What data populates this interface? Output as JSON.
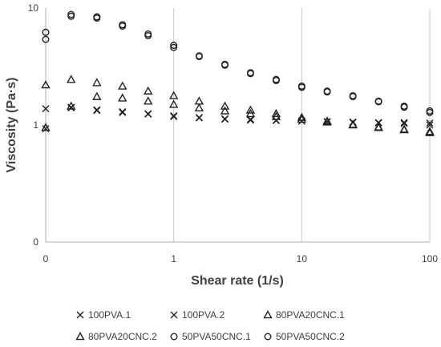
{
  "chart_data": {
    "type": "scatter",
    "xlabel": "Shear rate (1/s)",
    "ylabel": "Viscosity  (Pa·s)",
    "xscale": "log",
    "yscale": "log",
    "xlim": [
      0.1,
      100
    ],
    "ylim": [
      0.1,
      10
    ],
    "xticks": [
      {
        "v": 0.1,
        "label": "0"
      },
      {
        "v": 1,
        "label": "1"
      },
      {
        "v": 10,
        "label": "10"
      },
      {
        "v": 100,
        "label": "100"
      }
    ],
    "yticks": [
      {
        "v": 0.1,
        "label": "0"
      },
      {
        "v": 1,
        "label": "1"
      },
      {
        "v": 10,
        "label": "10"
      }
    ],
    "grid": "vertical",
    "legend_position": "bottom",
    "x": [
      0.1,
      0.158,
      0.251,
      0.398,
      0.631,
      1,
      1.58,
      2.51,
      3.98,
      6.31,
      10,
      15.8,
      25.1,
      39.8,
      63.1,
      100
    ],
    "series": [
      {
        "name": "100PVA.1",
        "marker": "x",
        "values": [
          1.38,
          1.4,
          1.35,
          1.3,
          1.25,
          1.2,
          1.16,
          1.13,
          1.12,
          1.1,
          1.08,
          1.07,
          1.06,
          1.05,
          1.05,
          1.04
        ]
      },
      {
        "name": "100PVA.2",
        "marker": "x",
        "values": [
          0.93,
          1.42,
          1.33,
          1.28,
          1.24,
          1.18,
          1.15,
          1.12,
          1.1,
          1.09,
          1.08,
          1.06,
          1.05,
          1.04,
          1.03,
          1.0
        ]
      },
      {
        "name": "80PVA20CNC.1",
        "marker": "triangle",
        "values": [
          2.2,
          2.45,
          2.3,
          2.15,
          1.95,
          1.78,
          1.6,
          1.45,
          1.34,
          1.25,
          1.16,
          1.08,
          1.01,
          0.96,
          0.92,
          0.88
        ]
      },
      {
        "name": "80PVA20CNC.2",
        "marker": "triangle",
        "values": [
          0.95,
          1.45,
          1.75,
          1.7,
          1.6,
          1.5,
          1.4,
          1.32,
          1.25,
          1.18,
          1.12,
          1.06,
          1.0,
          0.95,
          0.91,
          0.86
        ]
      },
      {
        "name": "50PVA50CNC.1",
        "marker": "circle",
        "values": [
          5.4,
          8.5,
          8.2,
          7.2,
          6.0,
          4.8,
          3.9,
          3.3,
          2.8,
          2.45,
          2.15,
          1.95,
          1.78,
          1.6,
          1.45,
          1.32
        ]
      },
      {
        "name": "50PVA50CNC.2",
        "marker": "circle",
        "values": [
          6.2,
          8.8,
          8.4,
          7.0,
          5.8,
          4.6,
          3.85,
          3.25,
          2.75,
          2.4,
          2.1,
          1.92,
          1.75,
          1.58,
          1.42,
          1.28
        ]
      }
    ]
  }
}
